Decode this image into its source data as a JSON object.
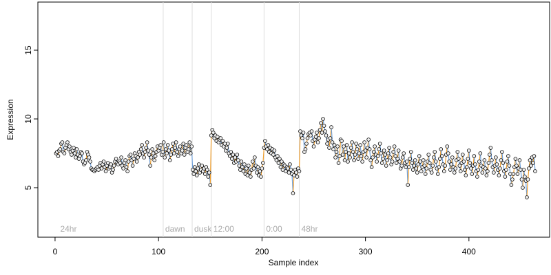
{
  "chart_data": {
    "type": "line",
    "x_label": "Sample index",
    "y_label": "Expression",
    "xlim": [
      -16.6,
      478
    ],
    "ylim": [
      1.4,
      18.5
    ],
    "xticks": [
      0,
      100,
      200,
      300,
      400
    ],
    "yticks": [
      5,
      10,
      15
    ],
    "rise_color": "#f0a030",
    "fall_color": "#6d9ed8",
    "point_fill": "#eeeeee",
    "annotations": [
      {
        "x": 3,
        "label": "24hr",
        "line": false
      },
      {
        "x": 104.5,
        "label": "dawn",
        "line": true
      },
      {
        "x": 132.5,
        "label": "dusk",
        "line": true
      },
      {
        "x": 151,
        "label": "12:00",
        "line": true
      },
      {
        "x": 202,
        "label": "0:00",
        "line": true
      },
      {
        "x": 236,
        "label": "48hr",
        "line": true
      }
    ],
    "values": [
      7.5,
      7.6,
      7.3,
      7.7,
      7.8,
      8.2,
      8.3,
      7.6,
      7.5,
      7.9,
      8.1,
      8.3,
      7.8,
      8.0,
      7.6,
      7.4,
      7.7,
      7.9,
      7.5,
      7.2,
      7.8,
      7.4,
      7.1,
      7.3,
      7.6,
      7.5,
      6.9,
      6.7,
      6.8,
      7.0,
      7.6,
      7.4,
      7.2,
      6.9,
      6.4,
      6.3,
      6.3,
      6.2,
      6.3,
      6.4,
      6.5,
      6.3,
      6.6,
      6.8,
      6.4,
      6.7,
      6.9,
      6.5,
      6.2,
      6.6,
      6.8,
      6.4,
      6.5,
      6.7,
      6.1,
      6.3,
      6.6,
      6.9,
      7.1,
      6.8,
      6.7,
      6.9,
      6.8,
      7.2,
      6.6,
      6.4,
      6.8,
      7.0,
      6.5,
      6.2,
      6.9,
      7.3,
      7.4,
      7.0,
      6.6,
      7.1,
      7.5,
      7.3,
      6.9,
      7.2,
      7.6,
      7.4,
      7.8,
      8.1,
      7.5,
      7.2,
      7.6,
      7.9,
      8.3,
      7.7,
      7.4,
      6.6,
      7.2,
      7.8,
      7.5,
      7.0,
      7.3,
      7.6,
      8.0,
      7.7,
      7.9,
      8.1,
      7.4,
      7.6,
      8.3,
      7.2,
      7.8,
      7.5,
      8.1,
      7.7,
      7.0,
      7.4,
      7.8,
      8.2,
      7.5,
      7.9,
      8.3,
      7.6,
      7.3,
      7.8,
      8.0,
      7.5,
      7.7,
      8.2,
      7.4,
      7.9,
      8.1,
      7.6,
      7.8,
      8.3,
      7.5,
      8.0,
      6.3,
      6.0,
      6.5,
      6.2,
      5.9,
      6.4,
      6.7,
      6.1,
      6.3,
      6.6,
      6.2,
      6.4,
      6.0,
      6.5,
      6.3,
      5.8,
      6.1,
      5.2,
      8.8,
      9.2,
      9.0,
      8.6,
      8.8,
      8.4,
      8.7,
      8.3,
      8.5,
      8.6,
      8.1,
      8.4,
      8.0,
      8.2,
      7.7,
      7.9,
      8.2,
      7.5,
      7.3,
      7.6,
      7.1,
      7.4,
      6.8,
      7.2,
      6.9,
      7.4,
      7.0,
      6.6,
      6.3,
      6.9,
      6.5,
      6.2,
      6.7,
      6.0,
      6.4,
      5.9,
      6.6,
      6.1,
      5.8,
      6.3,
      6.9,
      6.4,
      7.2,
      6.6,
      6.1,
      6.5,
      5.9,
      6.2,
      5.8,
      6.4,
      6.8,
      7.9,
      8.4,
      8.0,
      7.8,
      8.1,
      7.6,
      7.9,
      7.5,
      7.8,
      7.4,
      7.7,
      7.2,
      7.0,
      7.3,
      6.8,
      7.1,
      6.5,
      6.9,
      6.3,
      6.7,
      6.6,
      6.2,
      6.5,
      6.4,
      6.1,
      6.7,
      6.3,
      6.0,
      4.6,
      5.9,
      6.3,
      6.1,
      5.8,
      6.4,
      6.2,
      9.1,
      8.8,
      8.6,
      9.0,
      7.6,
      7.8,
      8.2,
      8.6,
      8.9,
      9.0,
      8.8,
      9.1,
      8.4,
      8.0,
      8.5,
      8.7,
      9.0,
      8.3,
      8.6,
      9.2,
      9.7,
      9.0,
      10.0,
      9.5,
      9.1,
      8.8,
      8.2,
      8.5,
      7.9,
      8.6,
      9.4,
      8.3,
      7.8,
      8.1,
      7.2,
      7.6,
      8.0,
      6.8,
      7.3,
      8.5,
      8.4,
      7.4,
      8.0,
      7.0,
      7.6,
      8.1,
      6.9,
      7.5,
      7.2,
      7.9,
      8.3,
      7.6,
      7.0,
      7.4,
      8.2,
      7.8,
      7.1,
      7.5,
      8.1,
      7.3,
      6.9,
      7.6,
      8.3,
      7.7,
      7.2,
      7.9,
      8.5,
      7.8,
      7.0,
      6.5,
      7.2,
      7.6,
      8.0,
      7.4,
      6.9,
      7.3,
      7.8,
      8.2,
      7.5,
      6.8,
      7.1,
      7.7,
      7.4,
      6.6,
      7.0,
      7.5,
      7.9,
      7.2,
      6.7,
      6.9,
      7.6,
      8.0,
      7.3,
      6.8,
      7.1,
      7.7,
      6.9,
      6.4,
      6.6,
      7.2,
      7.5,
      6.8,
      6.5,
      6.9,
      5.2,
      6.5,
      7.1,
      7.6,
      6.8,
      6.3,
      6.6,
      7.0,
      6.4,
      6.1,
      6.7,
      7.3,
      6.9,
      6.2,
      6.5,
      7.0,
      6.6,
      6.0,
      6.4,
      6.9,
      7.4,
      6.8,
      6.3,
      6.1,
      6.6,
      7.2,
      7.6,
      6.9,
      6.4,
      6.0,
      6.5,
      7.1,
      7.8,
      7.3,
      6.7,
      6.2,
      6.6,
      7.4,
      8.0,
      7.5,
      6.9,
      6.3,
      6.7,
      7.2,
      6.5,
      6.1,
      6.4,
      7.0,
      7.6,
      7.1,
      6.6,
      6.2,
      6.8,
      7.4,
      6.9,
      6.3,
      5.9,
      6.5,
      7.1,
      7.7,
      6.8,
      6.4,
      6.0,
      6.6,
      7.3,
      6.7,
      6.2,
      5.8,
      6.3,
      6.9,
      7.5,
      6.6,
      6.1,
      6.5,
      7.0,
      6.4,
      5.9,
      6.2,
      6.8,
      7.4,
      7.9,
      7.0,
      6.5,
      6.1,
      6.6,
      7.2,
      6.7,
      6.3,
      5.9,
      6.4,
      7.0,
      7.6,
      6.8,
      6.2,
      5.8,
      6.3,
      6.9,
      7.3,
      6.6,
      6.0,
      5.2,
      5.6,
      6.0,
      6.5,
      7.1,
      6.6,
      6.0,
      6.4,
      7.0,
      6.3,
      5.6,
      5.0,
      6.3,
      5.8,
      5.5,
      4.3,
      5.6,
      6.4,
      7.0,
      6.6,
      7.2,
      6.8,
      7.3,
      6.2
    ]
  }
}
